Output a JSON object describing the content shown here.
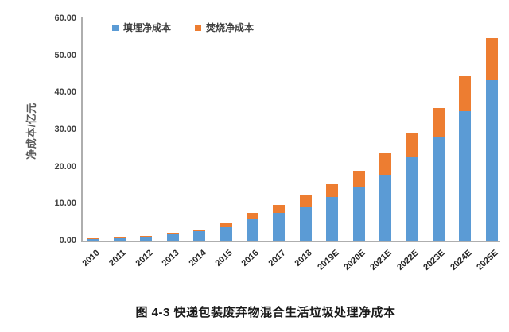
{
  "figure": {
    "caption": "图 4-3 快递包装废弃物混合生活垃圾处理净成本"
  },
  "chart_data": {
    "type": "bar",
    "stacked": true,
    "title": "",
    "xlabel": "",
    "ylabel": "净成本/亿元",
    "ylim": [
      0,
      60
    ],
    "ytick_step": 10,
    "ytick_labels": [
      "0.00",
      "10.00",
      "20.00",
      "30.00",
      "40.00",
      "50.00",
      "60.00"
    ],
    "grid": false,
    "legend_position": "top-center",
    "categories": [
      "2010",
      "2011",
      "2012",
      "2013",
      "2014",
      "2015",
      "2016",
      "2017",
      "2018",
      "2019E",
      "2020E",
      "2021E",
      "2022E",
      "2023E",
      "2024E",
      "2025E"
    ],
    "series": [
      {
        "name": "填埋净成本",
        "color": "#5B9BD5",
        "values": [
          0.5,
          0.7,
          1.1,
          1.7,
          2.6,
          3.7,
          5.8,
          7.5,
          9.3,
          11.8,
          14.4,
          17.8,
          22.5,
          28.0,
          34.9,
          43.3
        ]
      },
      {
        "name": "焚烧净成本",
        "color": "#ED7D31",
        "values": [
          0.1,
          0.15,
          0.25,
          0.35,
          0.5,
          1.1,
          1.7,
          2.1,
          2.9,
          3.5,
          4.5,
          5.7,
          6.5,
          7.8,
          9.5,
          11.4
        ]
      }
    ]
  }
}
